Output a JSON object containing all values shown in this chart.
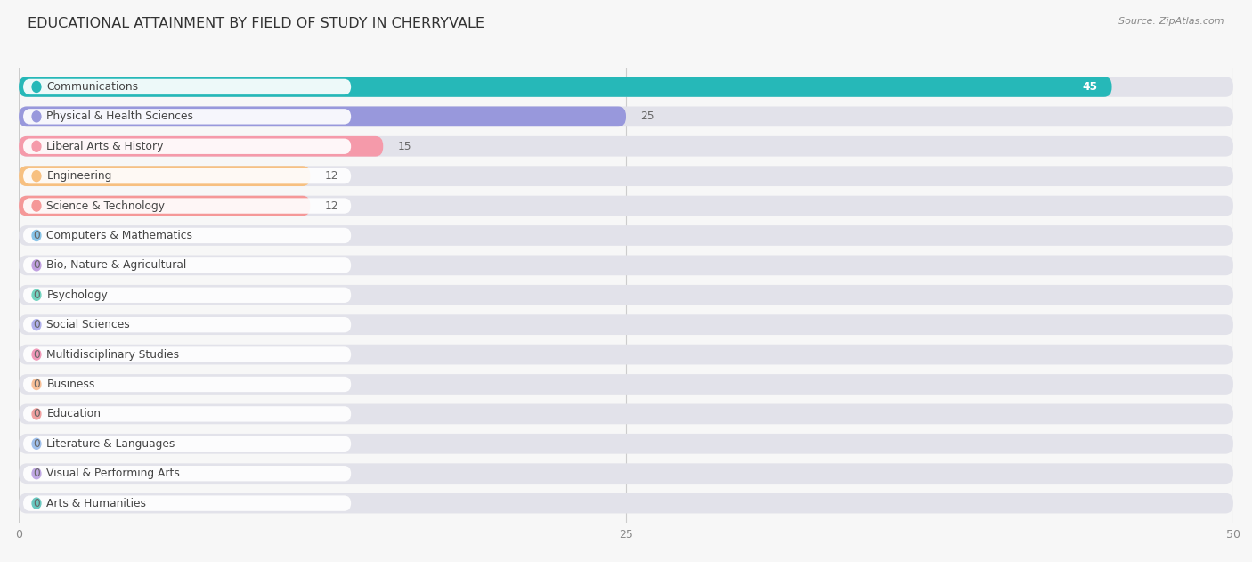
{
  "title": "EDUCATIONAL ATTAINMENT BY FIELD OF STUDY IN CHERRYVALE",
  "source": "Source: ZipAtlas.com",
  "categories": [
    "Communications",
    "Physical & Health Sciences",
    "Liberal Arts & History",
    "Engineering",
    "Science & Technology",
    "Computers & Mathematics",
    "Bio, Nature & Agricultural",
    "Psychology",
    "Social Sciences",
    "Multidisciplinary Studies",
    "Business",
    "Education",
    "Literature & Languages",
    "Visual & Performing Arts",
    "Arts & Humanities"
  ],
  "values": [
    45,
    25,
    15,
    12,
    12,
    0,
    0,
    0,
    0,
    0,
    0,
    0,
    0,
    0,
    0
  ],
  "bar_colors": [
    "#26b8b8",
    "#9898dc",
    "#f59aaa",
    "#f7c080",
    "#f59898",
    "#88c4e8",
    "#c0a0e0",
    "#72d4c0",
    "#b0b0ec",
    "#f098b8",
    "#f8c098",
    "#f0a0a0",
    "#a0c0ec",
    "#c0a8e4",
    "#68c8c0"
  ],
  "xlim": [
    0,
    50
  ],
  "xticks": [
    0,
    25,
    50
  ],
  "background_color": "#f7f7f7",
  "bar_bg_color": "#e2e2ea",
  "title_fontsize": 11.5,
  "label_fontsize": 8.8,
  "value_fontsize": 8.8,
  "value_color_inside": "#ffffff",
  "value_color_outside": "#666666"
}
